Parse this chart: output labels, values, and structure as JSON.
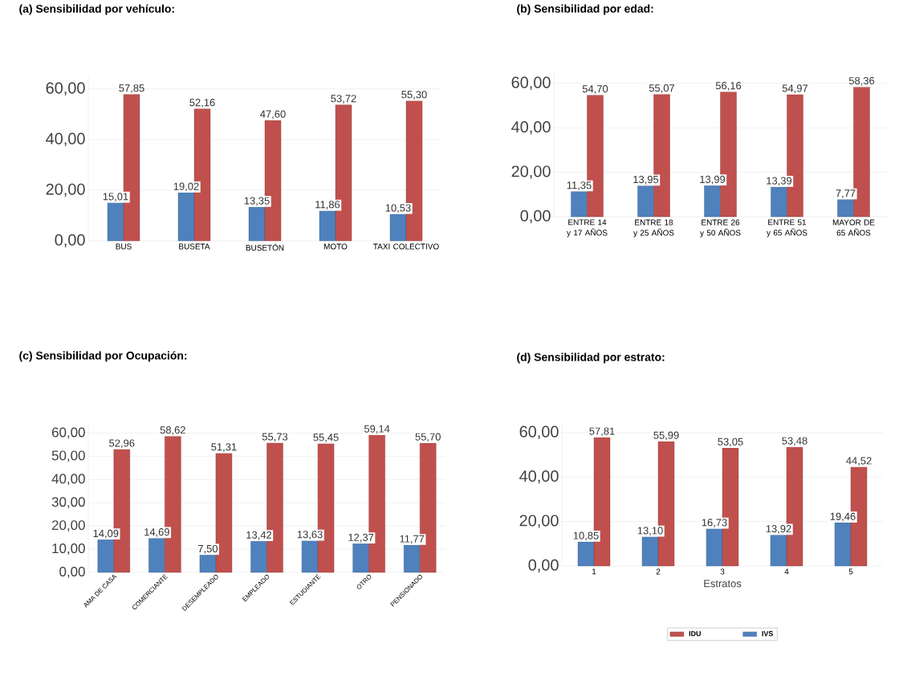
{
  "chart_data": [
    {
      "type": "bar",
      "title": "(a)   Sensibilidad por vehículo:",
      "categories": [
        "BUS",
        "BUSETA",
        "BUSETÓN",
        "MOTO",
        "TAXI COLECTIVO"
      ],
      "series": [
        {
          "color": "#4f81bd",
          "values": [
            15.01,
            19.02,
            13.35,
            11.86,
            10.53
          ],
          "value_labels": [
            "15,01",
            "19,02",
            "13,35",
            "11,86",
            "10,53"
          ]
        },
        {
          "color": "#c0504d",
          "values": [
            57.85,
            52.16,
            47.6,
            53.72,
            55.3
          ],
          "value_labels": [
            "57,85",
            "52,16",
            "47,60",
            "53,72",
            "55,30"
          ]
        }
      ],
      "ylim": [
        0,
        65
      ],
      "yticks": [
        {
          "value": 0,
          "label": "0,00"
        },
        {
          "value": 20,
          "label": "20,00"
        },
        {
          "value": 40,
          "label": "40,00"
        },
        {
          "value": 60,
          "label": "60,00"
        }
      ],
      "grid": "y"
    },
    {
      "type": "bar",
      "title": "(b)   Sensibilidad por edad:",
      "categories": [
        "ENTRE 14 y 17 AÑOS",
        "ENTRE 18 y 25 AÑOS",
        "ENTRE 26 y 50 AÑOS",
        "ENTRE 51 y 65 AÑOS",
        "MAYOR DE 65 AÑOS"
      ],
      "series": [
        {
          "color": "#4f81bd",
          "values": [
            11.35,
            13.95,
            13.99,
            13.39,
            7.77
          ],
          "value_labels": [
            "11,35",
            "13,95",
            "13,99",
            "13,39",
            "7,77"
          ]
        },
        {
          "color": "#c0504d",
          "values": [
            54.7,
            55.07,
            56.16,
            54.97,
            58.36
          ],
          "value_labels": [
            "54,70",
            "55,07",
            "56,16",
            "54,97",
            "58,36"
          ]
        }
      ],
      "ylim": [
        0,
        65
      ],
      "yticks": [
        {
          "value": 0,
          "label": "0,00"
        },
        {
          "value": 20,
          "label": "20,00"
        },
        {
          "value": 40,
          "label": "40,00"
        },
        {
          "value": 60,
          "label": "60,00"
        }
      ],
      "grid": "y"
    },
    {
      "type": "bar",
      "title": "(c)   Sensibilidad por Ocupación:",
      "categories": [
        "AMA DE CASA",
        "COMERCIANTE",
        "DESEMPLEADO",
        "EMPLEADO",
        "ESTUDIANTE",
        "OTRO",
        "PENSIONADO"
      ],
      "series": [
        {
          "color": "#4f81bd",
          "values": [
            14.09,
            14.69,
            7.5,
            13.42,
            13.63,
            12.37,
            11.77
          ],
          "value_labels": [
            "14,09",
            "14,69",
            "7,50",
            "13,42",
            "13,63",
            "12,37",
            "11,77"
          ]
        },
        {
          "color": "#c0504d",
          "values": [
            52.96,
            58.62,
            51.31,
            55.73,
            55.45,
            59.14,
            55.7
          ],
          "value_labels": [
            "52,96",
            "58,62",
            "51,31",
            "55,73",
            "55,45",
            "59,14",
            "55,70"
          ]
        }
      ],
      "ylim": [
        0,
        65
      ],
      "yticks": [
        {
          "value": 0,
          "label": "0,00"
        },
        {
          "value": 10,
          "label": "10,00"
        },
        {
          "value": 20,
          "label": "20,00"
        },
        {
          "value": 30,
          "label": "30,00"
        },
        {
          "value": 40,
          "label": "40,00"
        },
        {
          "value": 50,
          "label": "50,00"
        },
        {
          "value": 60,
          "label": "60,00"
        }
      ],
      "grid": "y"
    },
    {
      "type": "bar",
      "title": "(d)   Sensibilidad por estrato:",
      "xlabel": "Estratos",
      "categories": [
        "1",
        "2",
        "3",
        "4",
        "5"
      ],
      "series": [
        {
          "name": "IVS",
          "color": "#4f81bd",
          "values": [
            10.85,
            13.1,
            16.73,
            13.92,
            19.46
          ],
          "value_labels": [
            "10,85",
            "13,10",
            "16,73",
            "13,92",
            "19,46"
          ]
        },
        {
          "name": "IDU",
          "color": "#c0504d",
          "values": [
            57.81,
            55.99,
            53.05,
            53.48,
            44.52
          ],
          "value_labels": [
            "57,81",
            "55,99",
            "53,05",
            "53,48",
            "44,52"
          ]
        }
      ],
      "ylim": [
        0,
        65
      ],
      "yticks": [
        {
          "value": 0,
          "label": "0,00"
        },
        {
          "value": 20,
          "label": "20,00"
        },
        {
          "value": 40,
          "label": "40,00"
        },
        {
          "value": 60,
          "label": "60,00"
        }
      ],
      "grid": "y",
      "legend": "bottom"
    }
  ]
}
